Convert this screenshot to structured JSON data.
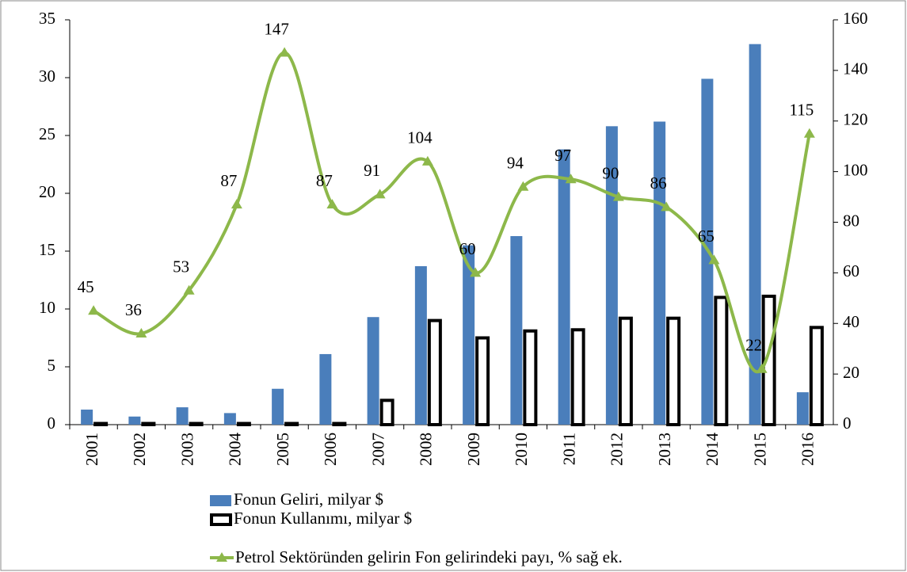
{
  "chart_data": {
    "type": "bar-line",
    "categories": [
      "2001",
      "2002",
      "2003",
      "2004",
      "2005",
      "2006",
      "2007",
      "2008",
      "2009",
      "2010",
      "2011",
      "2012",
      "2013",
      "2014",
      "2015",
      "2016"
    ],
    "series": [
      {
        "name": "Fonun Geliri, milyar $",
        "color": "#4a7ebb",
        "values": [
          1.3,
          0.7,
          1.5,
          1.0,
          3.1,
          6.1,
          9.3,
          13.7,
          15.5,
          16.3,
          23.8,
          25.8,
          26.2,
          29.9,
          32.9,
          2.8
        ]
      },
      {
        "name": "Fonun Kullanımı, milyar $",
        "color": "#000000",
        "values": [
          0.1,
          0.1,
          0.1,
          0.1,
          0.1,
          0.1,
          2.1,
          9.0,
          7.5,
          8.1,
          8.2,
          9.2,
          9.2,
          11.0,
          11.1,
          8.4
        ]
      },
      {
        "name": "Petrol Sektöründen gelirin Fon gelirindeki payı, % sağ ek.",
        "color": "#8db84a",
        "axis": "y2",
        "values": [
          45,
          36,
          53,
          87,
          147,
          87,
          91,
          104,
          60,
          94,
          97,
          90,
          86,
          65,
          22,
          115
        ]
      }
    ],
    "ylim": [
      0,
      35
    ],
    "yticks": [
      0,
      5,
      10,
      15,
      20,
      25,
      30,
      35
    ],
    "y2lim": [
      0,
      160
    ],
    "y2ticks": [
      0,
      20,
      40,
      60,
      80,
      100,
      120,
      140,
      160
    ]
  }
}
